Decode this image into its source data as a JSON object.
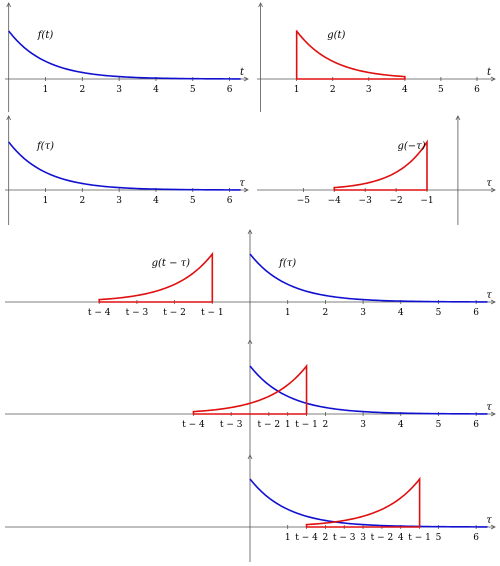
{
  "colors": {
    "f": "#1010d0",
    "g": "#e01010",
    "axis": "#555555"
  },
  "panels": [
    {
      "name": "panel-f-of-t",
      "xlim": [
        -0.1,
        6.5
      ],
      "ticks": [
        {
          "v": 1,
          "t": "1"
        },
        {
          "v": 2,
          "t": "2"
        },
        {
          "v": 3,
          "t": "3"
        },
        {
          "v": 4,
          "t": "4"
        },
        {
          "v": 5,
          "t": "5"
        },
        {
          "v": 6,
          "t": "6"
        }
      ],
      "axis_label": "t",
      "curves": [
        {
          "fn": "f",
          "range": [
            0,
            6.3
          ],
          "color": "blue",
          "label": "f(t)",
          "label_at": [
            1,
            0.85
          ]
        }
      ]
    },
    {
      "name": "panel-g-of-t",
      "xlim": [
        -0.1,
        6.5
      ],
      "ticks": [
        {
          "v": 1,
          "t": "1"
        },
        {
          "v": 2,
          "t": "2"
        },
        {
          "v": 3,
          "t": "3"
        },
        {
          "v": 4,
          "t": "4"
        },
        {
          "v": 5,
          "t": "5"
        },
        {
          "v": 6,
          "t": "6"
        }
      ],
      "axis_label": "t",
      "curves": [
        {
          "fn": "g",
          "range": [
            1,
            4
          ],
          "color": "red",
          "label": "g(t)",
          "label_at": [
            2.1,
            0.85
          ]
        }
      ]
    },
    {
      "name": "panel-f-of-tau",
      "xlim": [
        -0.1,
        6.5
      ],
      "ticks": [
        {
          "v": 1,
          "t": "1"
        },
        {
          "v": 2,
          "t": "2"
        },
        {
          "v": 3,
          "t": "3"
        },
        {
          "v": 4,
          "t": "4"
        },
        {
          "v": 5,
          "t": "5"
        },
        {
          "v": 6,
          "t": "6"
        }
      ],
      "axis_label": "τ",
      "curves": [
        {
          "fn": "f",
          "range": [
            0,
            6.3
          ],
          "color": "blue",
          "label": "f(τ)",
          "label_at": [
            1,
            0.85
          ]
        }
      ]
    },
    {
      "name": "panel-g-of-minus-tau",
      "xlim": [
        -6.5,
        1.2
      ],
      "ticks": [
        {
          "v": -5,
          "t": "−5"
        },
        {
          "v": -4,
          "t": "−4"
        },
        {
          "v": -3,
          "t": "−3"
        },
        {
          "v": -2,
          "t": "−2"
        },
        {
          "v": -1,
          "t": "−1"
        }
      ],
      "axis_label": "τ",
      "curves": [
        {
          "fn": "gm",
          "range": [
            -4,
            -1
          ],
          "color": "red",
          "label": "g(−τ)",
          "label_at": [
            -1.5,
            0.85
          ]
        }
      ]
    },
    {
      "name": "panel-shift-1",
      "xlim": [
        -6.5,
        6.5
      ],
      "ticks": [
        {
          "v": -4,
          "t": "t − 4"
        },
        {
          "v": -3,
          "t": "t − 3"
        },
        {
          "v": -2,
          "t": "t − 2"
        },
        {
          "v": -1,
          "t": "t − 1"
        },
        {
          "v": 1,
          "t": "1"
        },
        {
          "v": 2,
          "t": "2"
        },
        {
          "v": 3,
          "t": "3"
        },
        {
          "v": 4,
          "t": "4"
        },
        {
          "v": 5,
          "t": "5"
        },
        {
          "v": 6,
          "t": "6"
        }
      ],
      "axis_label": "τ",
      "curves": [
        {
          "fn": "f",
          "range": [
            0,
            6.3
          ],
          "color": "blue",
          "label": "f(τ)",
          "label_at": [
            1,
            0.75
          ]
        },
        {
          "fn": "gs",
          "shift": 0,
          "range": [
            -4,
            -1
          ],
          "color": "red",
          "label": "g(t − τ)",
          "label_at": [
            -2.1,
            0.75
          ]
        }
      ]
    },
    {
      "name": "panel-shift-2",
      "xlim": [
        -6.5,
        6.5
      ],
      "ticks": [
        {
          "v": -1.5,
          "t": "t − 4"
        },
        {
          "v": -0.5,
          "t": "t − 3"
        },
        {
          "v": 0.5,
          "t": "t − 2"
        },
        {
          "v": 1,
          "t": "1"
        },
        {
          "v": 1.5,
          "t": "t − 1"
        },
        {
          "v": 2,
          "t": "2"
        },
        {
          "v": 3,
          "t": "3"
        },
        {
          "v": 4,
          "t": "4"
        },
        {
          "v": 5,
          "t": "5"
        },
        {
          "v": 6,
          "t": "6"
        }
      ],
      "axis_label": "τ",
      "curves": [
        {
          "fn": "f",
          "range": [
            0,
            6.3
          ],
          "color": "blue"
        },
        {
          "fn": "gs",
          "shift": 2.5,
          "range": [
            -1.5,
            1.5
          ],
          "color": "red"
        }
      ]
    },
    {
      "name": "panel-shift-3",
      "xlim": [
        -6.5,
        6.5
      ],
      "ticks": [
        {
          "v": 1,
          "t": "1"
        },
        {
          "v": 1.5,
          "t": "t − 4"
        },
        {
          "v": 2,
          "t": "2"
        },
        {
          "v": 2.5,
          "t": "t − 3"
        },
        {
          "v": 3,
          "t": "3"
        },
        {
          "v": 3.5,
          "t": "t − 2"
        },
        {
          "v": 4,
          "t": "4"
        },
        {
          "v": 4.5,
          "t": "t − 1"
        },
        {
          "v": 5,
          "t": "5"
        },
        {
          "v": 6,
          "t": "6"
        }
      ],
      "axis_label": "τ",
      "curves": [
        {
          "fn": "f",
          "range": [
            0,
            6.3
          ],
          "color": "blue"
        },
        {
          "fn": "gs",
          "shift": 5.5,
          "range": [
            1.5,
            4.5
          ],
          "color": "red"
        }
      ]
    }
  ]
}
